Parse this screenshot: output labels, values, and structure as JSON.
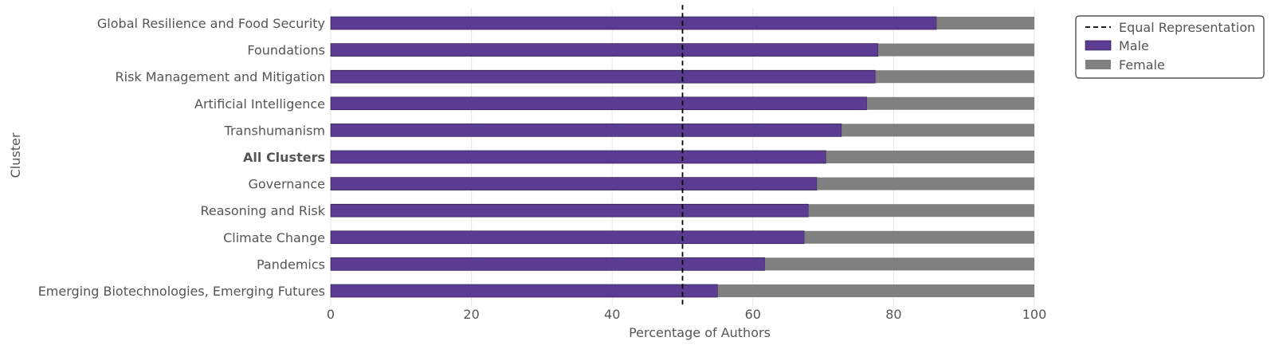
{
  "chart_data": {
    "type": "bar",
    "orientation": "horizontal",
    "stacked": true,
    "categories": [
      "Global Resilience and Food Security",
      "Foundations",
      "Risk Management and Mitigation",
      "Artificial Intelligence",
      "Transhumanism",
      "All Clusters",
      "Governance",
      "Reasoning and Risk",
      "Climate Change",
      "Pandemics",
      "Emerging Biotechnologies, Emerging Futures"
    ],
    "bold_category": "All Clusters",
    "series": [
      {
        "name": "Male",
        "color": "#5c3c92",
        "values": [
          86.1,
          77.8,
          77.4,
          76.2,
          72.6,
          70.4,
          69.1,
          67.9,
          67.3,
          61.7,
          55.0
        ]
      },
      {
        "name": "Female",
        "color": "#808080",
        "values": [
          13.9,
          22.2,
          22.6,
          23.8,
          27.4,
          29.6,
          30.9,
          32.1,
          32.7,
          38.3,
          45.0
        ]
      }
    ],
    "reference_line": {
      "name": "Equal Representation",
      "x": 50,
      "style": "dashed",
      "color": "#000000"
    },
    "xlabel": "Percentage of Authors",
    "ylabel": "Cluster",
    "xlim": [
      0,
      100
    ],
    "xticks": [
      0,
      20,
      40,
      60,
      80,
      100
    ],
    "grid": "vertical",
    "legend": {
      "placement": "top-right outside",
      "entries": [
        "Equal Representation",
        "Male",
        "Female"
      ]
    }
  }
}
